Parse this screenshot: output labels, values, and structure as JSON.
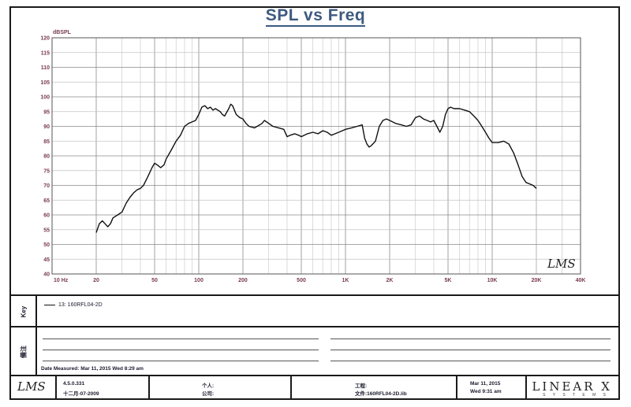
{
  "chart_data": {
    "type": "line",
    "title": "SPL vs Freq",
    "ylabel": "dBSPL",
    "xlabel": "",
    "x_scale": "log",
    "xlim": [
      10,
      40000
    ],
    "ylim": [
      40,
      120
    ],
    "grid": true,
    "x_tick_labels": [
      {
        "value": 10,
        "label": "10 Hz"
      },
      {
        "value": 20,
        "label": "20"
      },
      {
        "value": 50,
        "label": "50"
      },
      {
        "value": 100,
        "label": "100"
      },
      {
        "value": 200,
        "label": "200"
      },
      {
        "value": 500,
        "label": "500"
      },
      {
        "value": 1000,
        "label": "1K"
      },
      {
        "value": 2000,
        "label": "2K"
      },
      {
        "value": 5000,
        "label": "5K"
      },
      {
        "value": 10000,
        "label": "10K"
      },
      {
        "value": 20000,
        "label": "20K"
      },
      {
        "value": 40000,
        "label": "40K"
      }
    ],
    "y_ticks": [
      40,
      45,
      50,
      55,
      60,
      65,
      70,
      75,
      80,
      85,
      90,
      95,
      100,
      105,
      110,
      115,
      120
    ],
    "series": [
      {
        "name": "13: 160RFL04-2D",
        "color": "#111111",
        "points": [
          [
            20,
            54
          ],
          [
            21,
            57
          ],
          [
            22,
            58
          ],
          [
            23,
            57
          ],
          [
            24,
            56
          ],
          [
            25,
            57
          ],
          [
            26,
            59
          ],
          [
            28,
            60
          ],
          [
            30,
            61
          ],
          [
            32,
            64
          ],
          [
            34,
            66
          ],
          [
            36,
            67.5
          ],
          [
            38,
            68.5
          ],
          [
            40,
            69
          ],
          [
            42,
            70
          ],
          [
            45,
            73
          ],
          [
            48,
            76
          ],
          [
            50,
            77.5
          ],
          [
            52,
            77
          ],
          [
            55,
            76
          ],
          [
            58,
            77
          ],
          [
            60,
            79
          ],
          [
            65,
            82
          ],
          [
            70,
            85
          ],
          [
            75,
            87
          ],
          [
            80,
            90
          ],
          [
            85,
            91
          ],
          [
            90,
            91.5
          ],
          [
            95,
            92
          ],
          [
            100,
            94
          ],
          [
            105,
            96.5
          ],
          [
            110,
            97
          ],
          [
            115,
            96
          ],
          [
            120,
            96.5
          ],
          [
            125,
            95.5
          ],
          [
            130,
            96
          ],
          [
            140,
            95
          ],
          [
            145,
            94
          ],
          [
            150,
            93.5
          ],
          [
            160,
            96
          ],
          [
            165,
            97.5
          ],
          [
            170,
            97
          ],
          [
            180,
            94
          ],
          [
            190,
            93
          ],
          [
            200,
            92.5
          ],
          [
            210,
            91
          ],
          [
            220,
            90
          ],
          [
            240,
            89.5
          ],
          [
            250,
            90
          ],
          [
            270,
            91
          ],
          [
            280,
            92
          ],
          [
            300,
            91
          ],
          [
            320,
            90
          ],
          [
            350,
            89.5
          ],
          [
            380,
            89
          ],
          [
            400,
            86.5
          ],
          [
            420,
            87
          ],
          [
            450,
            87.5
          ],
          [
            480,
            87
          ],
          [
            500,
            86.5
          ],
          [
            550,
            87.5
          ],
          [
            600,
            88
          ],
          [
            650,
            87.5
          ],
          [
            700,
            88.5
          ],
          [
            750,
            88
          ],
          [
            800,
            87
          ],
          [
            850,
            87.5
          ],
          [
            900,
            88
          ],
          [
            950,
            88.5
          ],
          [
            1000,
            89
          ],
          [
            1100,
            89.5
          ],
          [
            1200,
            90
          ],
          [
            1300,
            90.5
          ],
          [
            1350,
            86
          ],
          [
            1400,
            84
          ],
          [
            1450,
            83
          ],
          [
            1500,
            83.5
          ],
          [
            1600,
            85
          ],
          [
            1700,
            90
          ],
          [
            1800,
            92
          ],
          [
            1900,
            92.5
          ],
          [
            2000,
            92
          ],
          [
            2200,
            91
          ],
          [
            2400,
            90.5
          ],
          [
            2600,
            90
          ],
          [
            2800,
            90.5
          ],
          [
            3000,
            93
          ],
          [
            3200,
            93.5
          ],
          [
            3400,
            92.5
          ],
          [
            3600,
            92
          ],
          [
            3800,
            91.5
          ],
          [
            4000,
            92
          ],
          [
            4200,
            90
          ],
          [
            4400,
            88
          ],
          [
            4600,
            90
          ],
          [
            4800,
            94
          ],
          [
            5000,
            96
          ],
          [
            5200,
            96.5
          ],
          [
            5500,
            96
          ],
          [
            6000,
            96
          ],
          [
            6500,
            95.5
          ],
          [
            7000,
            95
          ],
          [
            7500,
            93.5
          ],
          [
            8000,
            92
          ],
          [
            8500,
            90
          ],
          [
            9000,
            88
          ],
          [
            9500,
            86
          ],
          [
            10000,
            84.5
          ],
          [
            11000,
            84.5
          ],
          [
            12000,
            85
          ],
          [
            13000,
            84
          ],
          [
            14000,
            81
          ],
          [
            15000,
            77
          ],
          [
            16000,
            73
          ],
          [
            17000,
            71
          ],
          [
            18000,
            70.5
          ],
          [
            19000,
            70
          ],
          [
            20000,
            69
          ]
        ]
      }
    ]
  },
  "legend_panel": {
    "tab_label": "Key",
    "entry_label": "13: 160RFL04-2D"
  },
  "notes_panel": {
    "tab_label": "備注",
    "date_measured": "Date Measured: Mar 11, 2015  Wed  8:29 am"
  },
  "footer": {
    "logo_text": "LMS",
    "version": "4.5.0.331",
    "version_date": "十二月-07-2009",
    "person_label": "个人:",
    "company_label": "公司:",
    "project_label": "工程:",
    "file_label": "文件:160RFL04-2D.lib",
    "date": "Mar 11, 2015",
    "day_time": "Wed  9:31 am",
    "brand": "LINEAR X",
    "brand_sub": "S Y S T E M S"
  },
  "chart_watermark": "LMS"
}
